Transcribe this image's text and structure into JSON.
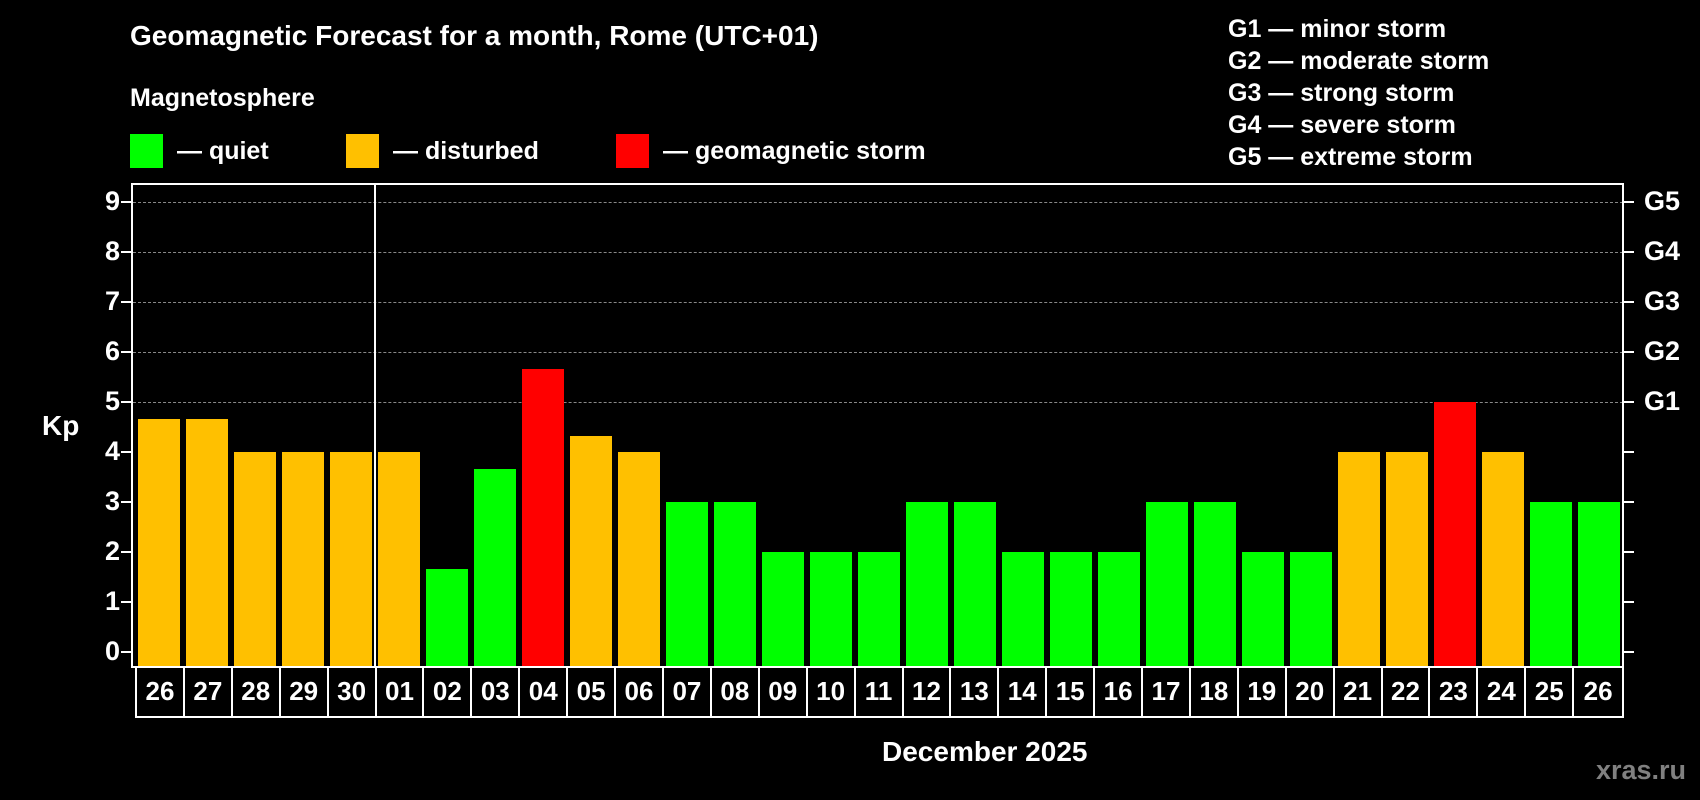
{
  "header": {
    "title": "Geomagnetic Forecast for a month, Rome (UTC+01)",
    "subtitle": "Magnetosphere"
  },
  "legend": [
    {
      "label": "— quiet",
      "color": "#00FF00"
    },
    {
      "label": "— disturbed",
      "color": "#FFC000"
    },
    {
      "label": "— geomagnetic storm",
      "color": "#FF0000"
    }
  ],
  "storm_scale": [
    "G1 — minor storm",
    "G2 — moderate storm",
    "G3 — strong storm",
    "G4 — severe storm",
    "G5 — extreme storm"
  ],
  "axis": {
    "ylabel": "Kp",
    "yticks": [
      "0",
      "1",
      "2",
      "3",
      "4",
      "5",
      "6",
      "7",
      "8",
      "9"
    ],
    "right_labels": {
      "5": "G1",
      "6": "G2",
      "7": "G3",
      "8": "G4",
      "9": "G5"
    },
    "xlabel": "December 2025"
  },
  "watermark": "xras.ru",
  "chart_data": {
    "type": "bar",
    "title": "Geomagnetic Forecast for a month, Rome (UTC+01)",
    "xlabel": "December 2025",
    "ylabel": "Kp",
    "ylim": [
      0,
      9
    ],
    "grid": true,
    "legend_position": "top",
    "categories": [
      "26",
      "27",
      "28",
      "29",
      "30",
      "01",
      "02",
      "03",
      "04",
      "05",
      "06",
      "07",
      "08",
      "09",
      "10",
      "11",
      "12",
      "13",
      "14",
      "15",
      "16",
      "17",
      "18",
      "19",
      "20",
      "21",
      "22",
      "23",
      "24",
      "25",
      "26"
    ],
    "values": [
      4.67,
      4.67,
      4,
      4,
      4,
      4,
      1.67,
      3.67,
      5.67,
      4.33,
      4,
      3,
      3,
      2,
      2,
      2,
      3,
      3,
      2,
      2,
      2,
      3,
      3,
      2,
      2,
      4,
      4,
      5,
      4,
      3,
      3
    ],
    "status": [
      "disturbed",
      "disturbed",
      "disturbed",
      "disturbed",
      "disturbed",
      "disturbed",
      "quiet",
      "quiet",
      "storm",
      "disturbed",
      "disturbed",
      "quiet",
      "quiet",
      "quiet",
      "quiet",
      "quiet",
      "quiet",
      "quiet",
      "quiet",
      "quiet",
      "quiet",
      "quiet",
      "quiet",
      "quiet",
      "quiet",
      "disturbed",
      "disturbed",
      "storm",
      "disturbed",
      "quiet",
      "quiet"
    ],
    "colors": {
      "quiet": "#00FF00",
      "disturbed": "#FFC000",
      "storm": "#FF0000"
    },
    "secondary_axis": {
      "5": "G1",
      "6": "G2",
      "7": "G3",
      "8": "G4",
      "9": "G5"
    },
    "month_separator_after": "30"
  }
}
